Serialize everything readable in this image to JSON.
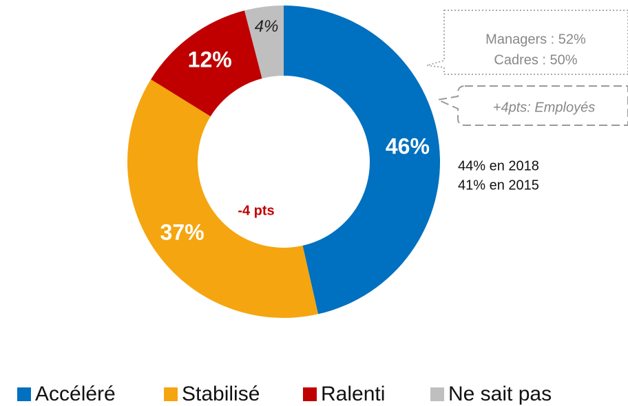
{
  "chart_data": {
    "type": "pie",
    "donut": true,
    "categories": [
      "Accéléré",
      "Stabilisé",
      "Ralenti",
      "Ne sait pas"
    ],
    "values": [
      46,
      37,
      12,
      4
    ],
    "value_labels": [
      "46%",
      "37%",
      "12%",
      "4%"
    ],
    "colors": [
      "#0070c0",
      "#f5a50f",
      "#c00000",
      "#bfbfbf"
    ],
    "label_colors": [
      "#ffffff",
      "#ffffff",
      "#ffffff",
      "#222222"
    ],
    "annotations": [
      "-4 pts",
      "44% en 2018",
      "41% en 2015",
      "Managers : 52%",
      "Cadres : 50%",
      "+4pts: Employés"
    ],
    "legend": "bottom"
  }
}
